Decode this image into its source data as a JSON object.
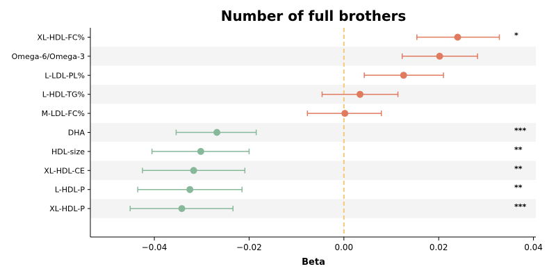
{
  "chart_data": {
    "type": "forest",
    "title": "Number of full brothers",
    "xlabel": "Beta",
    "ylabel": "",
    "xlim": [
      -0.0535,
      0.0405
    ],
    "xticks": [
      -0.04,
      -0.02,
      0.0,
      0.02,
      0.04
    ],
    "xtick_labels": [
      "−0.04",
      "−0.02",
      "0.00",
      "0.02",
      "0.04"
    ],
    "reference_line": {
      "x": 0.0,
      "style": "dashed",
      "color": "#f5c87a"
    },
    "row_shading": {
      "alternate": true,
      "color": "#f4f4f4"
    },
    "colors": {
      "positive": "#e07b5f",
      "negative": "#88b89a"
    },
    "categories": [
      "XL-HDL-FC%",
      "Omega-6/Omega-3",
      "L-LDL-PL%",
      "L-HDL-TG%",
      "M-LDL-FC%",
      "DHA",
      "HDL-size",
      "XL-HDL-CE",
      "L-HDL-P",
      "XL-HDL-P"
    ],
    "estimates": [
      0.024,
      0.0202,
      0.0126,
      0.0034,
      0.0002,
      -0.0268,
      -0.0302,
      -0.0317,
      -0.0325,
      -0.0342
    ],
    "ci_lower": [
      0.0154,
      0.0123,
      0.0043,
      -0.0046,
      -0.0077,
      -0.0354,
      -0.0405,
      -0.0425,
      -0.0435,
      -0.0451
    ],
    "ci_upper": [
      0.0328,
      0.0282,
      0.021,
      0.0114,
      0.0079,
      -0.0185,
      -0.02,
      -0.0209,
      -0.0215,
      -0.0234
    ],
    "significance": [
      "*",
      "",
      "",
      "",
      "",
      "***",
      "**",
      "**",
      "**",
      "***"
    ]
  }
}
